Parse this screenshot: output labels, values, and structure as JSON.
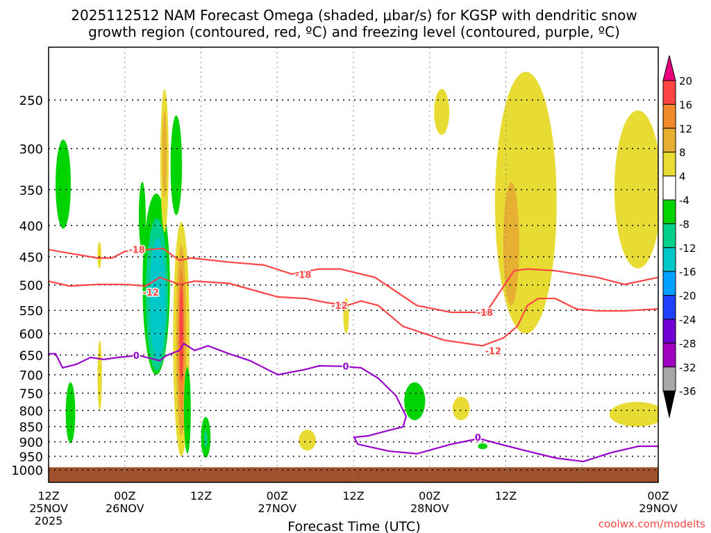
{
  "chart_data": {
    "type": "heatmap",
    "title_line1": "2025112512 NAM Forecast Omega (shaded, μbar/s) for KGSP with dendritic snow",
    "title_line2": "growth region (contoured, red, ºC) and freezing level (contoured, purple, ºC)",
    "xlabel": "Forecast Time (UTC)",
    "credit": "coolwx.com/modelts",
    "xlim": [
      0,
      96
    ],
    "ylim_hPa": [
      1047,
      205
    ],
    "yscale": "log",
    "grid": true,
    "x_ticks": [
      {
        "h": 0,
        "l1": "12Z",
        "l2": "25NOV",
        "l3": "2025"
      },
      {
        "h": 12,
        "l1": "00Z",
        "l2": "26NOV",
        "l3": ""
      },
      {
        "h": 24,
        "l1": "12Z",
        "l2": "",
        "l3": ""
      },
      {
        "h": 36,
        "l1": "00Z",
        "l2": "27NOV",
        "l3": ""
      },
      {
        "h": 48,
        "l1": "12Z",
        "l2": "",
        "l3": ""
      },
      {
        "h": 60,
        "l1": "00Z",
        "l2": "28NOV",
        "l3": ""
      },
      {
        "h": 72,
        "l1": "12Z",
        "l2": "",
        "l3": ""
      },
      {
        "h": 84,
        "l1": "00Z",
        "l2": "29NOV",
        "l3": ""
      }
    ],
    "x_ticks_hours_note": "hours since 2025112512",
    "y_ticks": [
      250,
      300,
      350,
      400,
      450,
      500,
      550,
      600,
      650,
      700,
      750,
      800,
      850,
      900,
      950,
      1000
    ],
    "colorbar": {
      "labels": [
        "20",
        "16",
        "12",
        "8",
        "4",
        "-4",
        "-8",
        "-12",
        "-16",
        "-20",
        "-24",
        "-28",
        "-32",
        "-36"
      ],
      "colors": [
        "#ff4444",
        "#f08a2c",
        "#e8b032",
        "#e8dc34",
        "#ffffff",
        "#00d400",
        "#00d08c",
        "#00c8c8",
        "#00a0ff",
        "#2040ff",
        "#7000d4",
        "#a000c0",
        "#a8a8a8"
      ],
      "top_color": "#e8007c",
      "bottom_color": "#000000"
    },
    "ground_hPa": 990,
    "ground_color": "#a0522d",
    "omega_blobs": [
      {
        "v": -6,
        "h": [
          1.1,
          3.5
        ],
        "p": [
          290,
          405
        ]
      },
      {
        "v": 6,
        "h": [
          7.7,
          8.3
        ],
        "p": [
          425,
          470
        ]
      },
      {
        "v": 6,
        "h": [
          7.7,
          8.4
        ],
        "p": [
          615,
          800
        ]
      },
      {
        "v": -6,
        "h": [
          2.7,
          4.2
        ],
        "p": [
          720,
          905
        ]
      },
      {
        "v": -6,
        "h": [
          14.2,
          15.3
        ],
        "p": [
          340,
          438
        ]
      },
      {
        "v": -6,
        "h": [
          14.8,
          19.1
        ],
        "p": [
          355,
          700
        ]
      },
      {
        "v": -10,
        "h": [
          15.3,
          18.8
        ],
        "p": [
          390,
          690
        ]
      },
      {
        "v": -14,
        "h": [
          15.9,
          18.4
        ],
        "p": [
          420,
          660
        ]
      },
      {
        "v": 6,
        "h": [
          17.6,
          18.9
        ],
        "p": [
          240,
          410
        ]
      },
      {
        "v": 10,
        "h": [
          17.9,
          18.6
        ],
        "p": [
          260,
          360
        ]
      },
      {
        "v": -6,
        "h": [
          19.2,
          21
        ],
        "p": [
          265,
          385
        ]
      },
      {
        "v": 6,
        "h": [
          19.6,
          22.2
        ],
        "p": [
          395,
          950
        ]
      },
      {
        "v": 10,
        "h": [
          20.1,
          21.7
        ],
        "p": [
          430,
          880
        ]
      },
      {
        "v": 14,
        "h": [
          20.4,
          21.4
        ],
        "p": [
          470,
          800
        ]
      },
      {
        "v": 18,
        "h": [
          20.6,
          21.2
        ],
        "p": [
          500,
          720
        ]
      },
      {
        "v": -6,
        "h": [
          21.3,
          22.4
        ],
        "p": [
          680,
          940
        ]
      },
      {
        "v": -6,
        "h": [
          24,
          25.5
        ],
        "p": [
          820,
          955
        ]
      },
      {
        "v": -10,
        "h": [
          24.5,
          25
        ],
        "p": [
          860,
          920
        ]
      },
      {
        "v": 6,
        "h": [
          39.4,
          42.1
        ],
        "p": [
          860,
          930
        ]
      },
      {
        "v": 6,
        "h": [
          46.4,
          47.3
        ],
        "p": [
          525,
          600
        ]
      },
      {
        "v": -6,
        "h": [
          56,
          59.3
        ],
        "p": [
          720,
          830
        ]
      },
      {
        "v": 6,
        "h": [
          60.7,
          63.1
        ],
        "p": [
          240,
          285
        ]
      },
      {
        "v": 6,
        "h": [
          63.6,
          66.3
        ],
        "p": [
          760,
          830
        ]
      },
      {
        "v": -6,
        "h": [
          67.6,
          69.1
        ],
        "p": [
          905,
          925
        ]
      },
      {
        "v": 6,
        "h": [
          70.3,
          80
        ],
        "p": [
          225,
          600
        ]
      },
      {
        "v": 10,
        "h": [
          71.6,
          74.1
        ],
        "p": [
          340,
          540
        ]
      },
      {
        "v": 6,
        "h": [
          89.1,
          96.5
        ],
        "p": [
          260,
          470
        ]
      },
      {
        "v": 6,
        "h": [
          88.3,
          97
        ],
        "p": [
          775,
          850
        ]
      }
    ],
    "contours": [
      {
        "name": "minus18-dgz-top",
        "color": "#ff4444",
        "pts": [
          [
            0,
            438
          ],
          [
            3.3,
            444
          ],
          [
            7.7,
            452
          ],
          [
            10,
            452
          ],
          [
            12,
            441
          ],
          [
            18,
            436
          ],
          [
            20.6,
            456
          ],
          [
            22.4,
            452
          ],
          [
            28.4,
            459
          ],
          [
            33.9,
            464
          ],
          [
            38.3,
            480
          ],
          [
            42.6,
            471
          ],
          [
            45.9,
            471
          ],
          [
            51.4,
            486
          ],
          [
            58,
            540
          ],
          [
            63.4,
            554
          ],
          [
            68.9,
            554
          ],
          [
            73.3,
            474
          ],
          [
            75.4,
            471
          ],
          [
            79.8,
            474
          ],
          [
            86.4,
            486
          ],
          [
            90.7,
            499
          ],
          [
            96,
            486
          ]
        ]
      },
      {
        "name": "minus12-dgz-bottom",
        "color": "#ff4444",
        "pts": [
          [
            0,
            493
          ],
          [
            3.3,
            502
          ],
          [
            7.7,
            499
          ],
          [
            12,
            499
          ],
          [
            15.3,
            502
          ],
          [
            17.5,
            486
          ],
          [
            20.6,
            499
          ],
          [
            23,
            493
          ],
          [
            28.4,
            497
          ],
          [
            36.1,
            523
          ],
          [
            40.5,
            526
          ],
          [
            43.7,
            534
          ],
          [
            47,
            540
          ],
          [
            49.2,
            531
          ],
          [
            51.9,
            540
          ],
          [
            55.8,
            584
          ],
          [
            59,
            599
          ],
          [
            62.3,
            615
          ],
          [
            68.3,
            628
          ],
          [
            71.6,
            610
          ],
          [
            73.8,
            584
          ],
          [
            75.4,
            540
          ],
          [
            77.1,
            526
          ],
          [
            79.8,
            526
          ],
          [
            83.1,
            547
          ],
          [
            86.4,
            551
          ],
          [
            90.7,
            551
          ],
          [
            96,
            547
          ]
        ]
      },
      {
        "name": "zero-freezing-level",
        "color": "#9900cc",
        "pts": [
          [
            0,
            647
          ],
          [
            1.1,
            647
          ],
          [
            2.2,
            682
          ],
          [
            4.4,
            673
          ],
          [
            6.6,
            656
          ],
          [
            8.7,
            661
          ],
          [
            10.9,
            656
          ],
          [
            14.2,
            651
          ],
          [
            17.5,
            664
          ],
          [
            18.6,
            651
          ],
          [
            20.6,
            639
          ],
          [
            21.3,
            623
          ],
          [
            23,
            639
          ],
          [
            25.1,
            628
          ],
          [
            28.4,
            647
          ],
          [
            31.7,
            664
          ],
          [
            36.1,
            700
          ],
          [
            40.5,
            686
          ],
          [
            42.6,
            677
          ],
          [
            45.9,
            678
          ],
          [
            49.2,
            682
          ],
          [
            51.9,
            709
          ],
          [
            54.7,
            757
          ],
          [
            56.3,
            818
          ],
          [
            55.8,
            851
          ],
          [
            53.6,
            862
          ],
          [
            50.3,
            880
          ],
          [
            48.1,
            885
          ],
          [
            48.7,
            908
          ],
          [
            53.6,
            932
          ],
          [
            58,
            941
          ],
          [
            63.4,
            908
          ],
          [
            67.8,
            889
          ],
          [
            71.1,
            908
          ],
          [
            75.4,
            932
          ],
          [
            79.8,
            956
          ],
          [
            84.2,
            969
          ],
          [
            88.6,
            937
          ],
          [
            92.9,
            915
          ],
          [
            96,
            915
          ]
        ]
      }
    ],
    "contour_labels": [
      {
        "t": "-18",
        "h": 13.9,
        "p": 438,
        "color": "#ff4444"
      },
      {
        "t": "-12",
        "h": 16.1,
        "p": 514,
        "color": "#ff4444"
      },
      {
        "t": "-18",
        "h": 40.1,
        "p": 481,
        "color": "#ff4444"
      },
      {
        "t": "-12",
        "h": 45.8,
        "p": 540,
        "color": "#ff4444"
      },
      {
        "t": "-18",
        "h": 68.7,
        "p": 554,
        "color": "#ff4444"
      },
      {
        "t": "-12",
        "h": 70,
        "p": 640,
        "color": "#ff4444"
      },
      {
        "t": "0",
        "h": 13.8,
        "p": 651,
        "color": "#9900cc"
      },
      {
        "t": "0",
        "h": 46.8,
        "p": 678,
        "color": "#9900cc"
      },
      {
        "t": "0",
        "h": 67.6,
        "p": 885,
        "color": "#9900cc"
      }
    ]
  }
}
